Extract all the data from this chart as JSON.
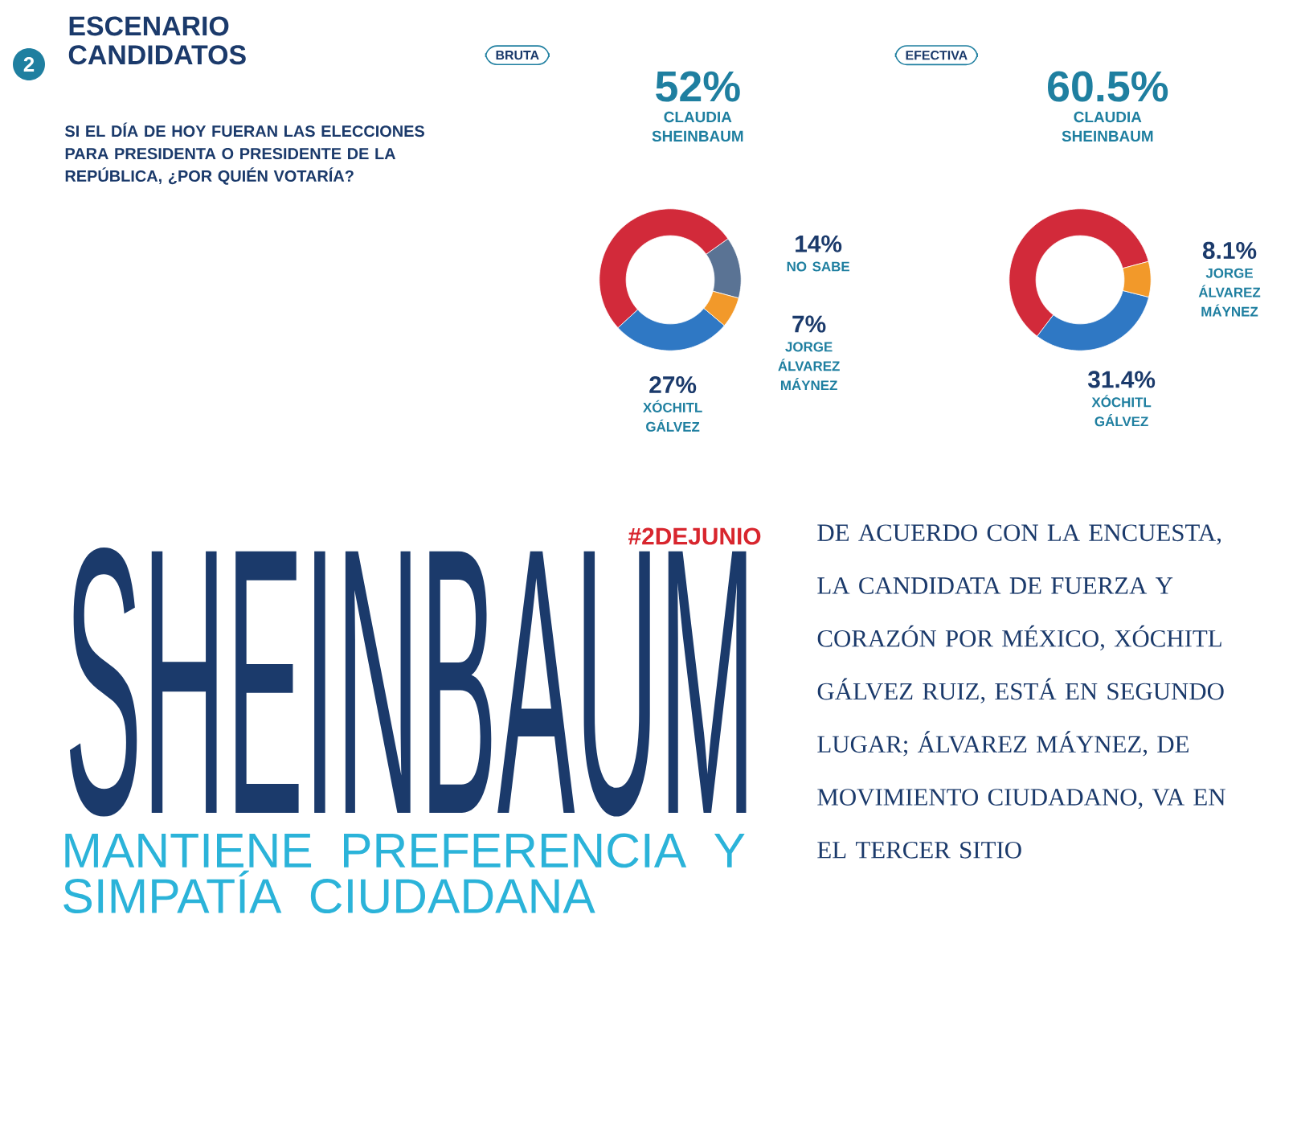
{
  "chart_data": [
    {
      "type": "other",
      "title": "ESCENARIO CANDIDATOS",
      "subtitle": "SI EL DÍA DE HOY FUERAN LAS ELECCIONES PARA PRESIDENTA O PRESIDENTE DE LA REPÚBLICA, ¿POR QUIÉN VOTARÍA?",
      "annotations": [
        "2"
      ]
    },
    {
      "type": "donut",
      "title": "BRUTA",
      "categories": [
        "NO SABE",
        "CLAUDIA SHEINBAUM",
        "XÓCHITL GÁLVEZ",
        "JORGE ÁLVAREZ MÁYNEZ"
      ],
      "values": [
        14,
        52,
        27,
        7
      ],
      "colors": [
        "#5a7394",
        "#d22a3a",
        "#2f78c4",
        "#f2992a"
      ],
      "value_labels": [
        "14%",
        "52%",
        "27%",
        "7%"
      ]
    },
    {
      "type": "donut",
      "title": "EFECTIVA",
      "categories": [
        "CLAUDIA SHEINBAUM",
        "XÓCHITL GÁLVEZ",
        "JORGE ÁLVAREZ MÁYNEZ"
      ],
      "values": [
        60.5,
        31.4,
        8.1
      ],
      "colors": [
        "#d22a3a",
        "#2f78c4",
        "#f2992a"
      ],
      "value_labels": [
        "60.5%",
        "31.4%",
        "8.1%"
      ]
    },
    {
      "type": "other",
      "title": "SHEINBAUM",
      "subtitle": "MANTIENE PREFERENCIA Y SIMPATÍA CIUDADANA",
      "annotations": [
        "#2DEJUNIO",
        "DE ACUERDO CON LA ENCUESTA, LA CANDIDATA DE FUERZA Y CORAZÓN POR MÉXICO, XÓCHITL GÁLVEZ RUIZ, ESTÁ EN SEGUNDO LUGAR; ÁLVAREZ MÁYNEZ, DE MOVIMIENTO CIUDADANO, VA EN EL TERCER SITIO"
      ]
    }
  ]
}
